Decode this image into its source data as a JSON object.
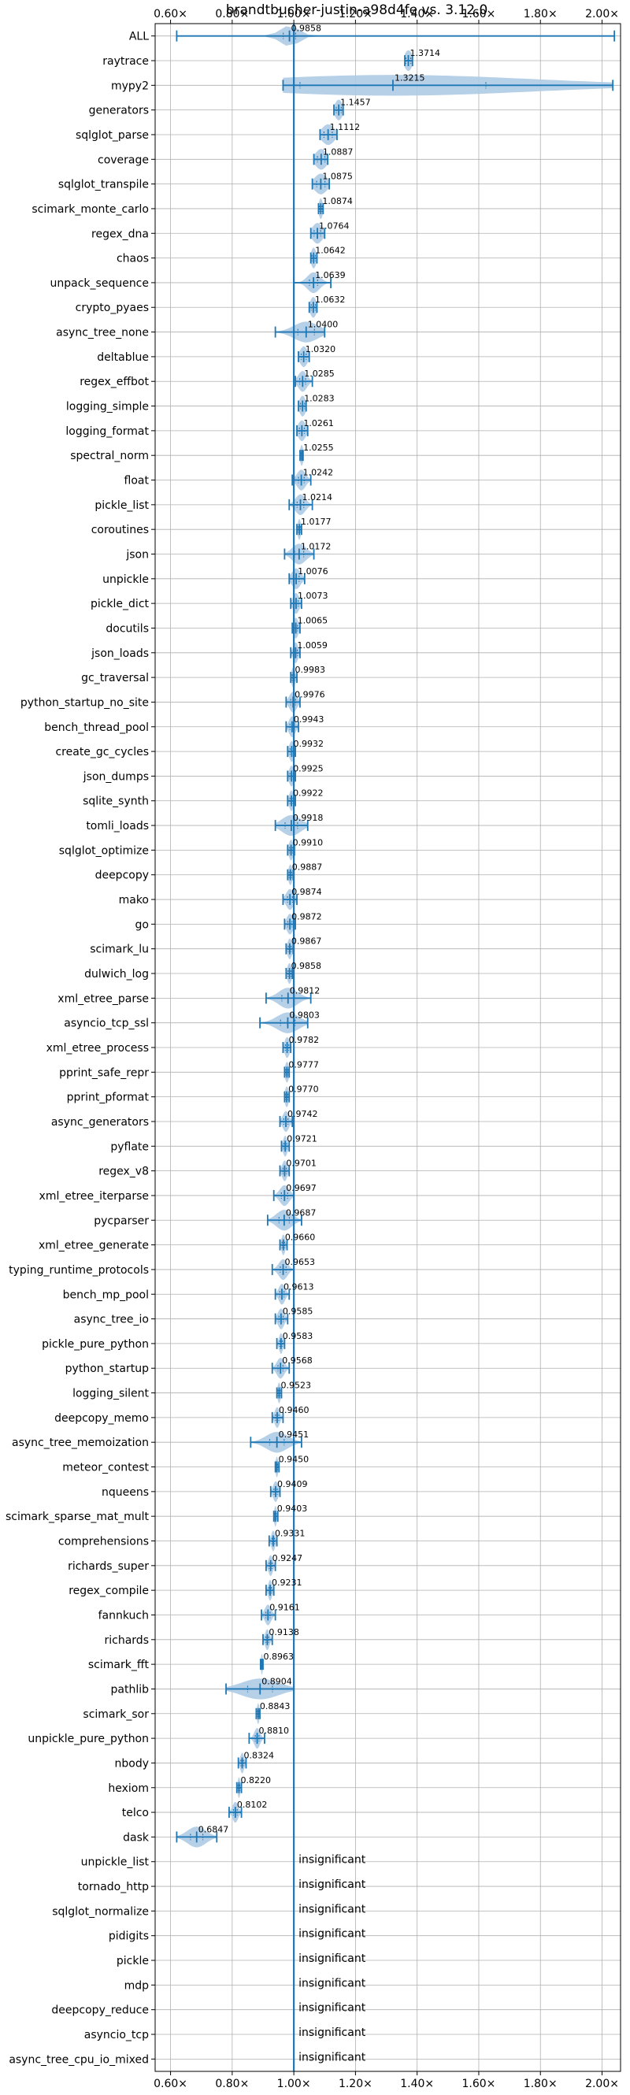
{
  "chart_data": {
    "type": "violin",
    "title": "brandtbucher-justin-a98d4fe vs. 3.12.0",
    "xlabel": "",
    "ylabel": "",
    "xlim": [
      0.55,
      2.06
    ],
    "x_ticks": [
      0.6,
      0.8,
      1.0,
      1.2,
      1.4,
      1.6,
      1.8,
      2.0
    ],
    "x_tick_labels": [
      "0.60×",
      "0.80×",
      "1.00×",
      "1.20×",
      "1.40×",
      "1.60×",
      "1.80×",
      "2.00×"
    ],
    "grid": true,
    "reference_line": 1.0,
    "insignificant_text": "insignificant",
    "colors": {
      "accent": "#1f77b4",
      "violin": "#aecbe5",
      "grid": "#b0b0b0"
    },
    "benchmarks": [
      {
        "name": "ALL",
        "value": 0.9858,
        "label": "0.9858",
        "min": 0.62,
        "max": 2.04,
        "spread": 0.03
      },
      {
        "name": "raytrace",
        "value": 1.3714,
        "label": "1.3714",
        "min": 1.36,
        "max": 1.385,
        "spread": 0.012
      },
      {
        "name": "mypy2",
        "value": 1.3215,
        "label": "1.3215",
        "min": 0.965,
        "max": 2.035,
        "spread": 0.45
      },
      {
        "name": "generators",
        "value": 1.1457,
        "label": "1.1457",
        "min": 1.13,
        "max": 1.16,
        "spread": 0.012
      },
      {
        "name": "sqlglot_parse",
        "value": 1.1112,
        "label": "1.1112",
        "min": 1.085,
        "max": 1.14,
        "spread": 0.02
      },
      {
        "name": "coverage",
        "value": 1.0887,
        "label": "1.0887",
        "min": 1.065,
        "max": 1.11,
        "spread": 0.018
      },
      {
        "name": "sqlglot_transpile",
        "value": 1.0875,
        "label": "1.0875",
        "min": 1.06,
        "max": 1.115,
        "spread": 0.02
      },
      {
        "name": "scimark_monte_carlo",
        "value": 1.0874,
        "label": "1.0874",
        "min": 1.08,
        "max": 1.095,
        "spread": 0.006
      },
      {
        "name": "regex_dna",
        "value": 1.0764,
        "label": "1.0764",
        "min": 1.055,
        "max": 1.1,
        "spread": 0.016
      },
      {
        "name": "chaos",
        "value": 1.0642,
        "label": "1.0642",
        "min": 1.055,
        "max": 1.075,
        "spread": 0.008
      },
      {
        "name": "unpack_sequence",
        "value": 1.0639,
        "label": "1.0639",
        "min": 1.0,
        "max": 1.12,
        "spread": 0.02
      },
      {
        "name": "crypto_pyaes",
        "value": 1.0632,
        "label": "1.0632",
        "min": 1.05,
        "max": 1.075,
        "spread": 0.01
      },
      {
        "name": "async_tree_none",
        "value": 1.04,
        "label": "1.0400",
        "min": 0.94,
        "max": 1.1,
        "spread": 0.04
      },
      {
        "name": "deltablue",
        "value": 1.032,
        "label": "1.0320",
        "min": 1.015,
        "max": 1.05,
        "spread": 0.012
      },
      {
        "name": "regex_effbot",
        "value": 1.0285,
        "label": "1.0285",
        "min": 1.005,
        "max": 1.06,
        "spread": 0.014
      },
      {
        "name": "logging_simple",
        "value": 1.0283,
        "label": "1.0283",
        "min": 1.015,
        "max": 1.04,
        "spread": 0.01
      },
      {
        "name": "logging_format",
        "value": 1.0261,
        "label": "1.0261",
        "min": 1.01,
        "max": 1.045,
        "spread": 0.012
      },
      {
        "name": "spectral_norm",
        "value": 1.0255,
        "label": "1.0255",
        "min": 1.02,
        "max": 1.03,
        "spread": 0.005
      },
      {
        "name": "float",
        "value": 1.0242,
        "label": "1.0242",
        "min": 0.995,
        "max": 1.055,
        "spread": 0.014
      },
      {
        "name": "pickle_list",
        "value": 1.0214,
        "label": "1.0214",
        "min": 0.985,
        "max": 1.06,
        "spread": 0.016
      },
      {
        "name": "coroutines",
        "value": 1.0177,
        "label": "1.0177",
        "min": 1.01,
        "max": 1.025,
        "spread": 0.005
      },
      {
        "name": "json",
        "value": 1.0172,
        "label": "1.0172",
        "min": 0.97,
        "max": 1.065,
        "spread": 0.022
      },
      {
        "name": "unpickle",
        "value": 1.0076,
        "label": "1.0076",
        "min": 0.985,
        "max": 1.035,
        "spread": 0.014
      },
      {
        "name": "pickle_dict",
        "value": 1.0073,
        "label": "1.0073",
        "min": 0.99,
        "max": 1.025,
        "spread": 0.01
      },
      {
        "name": "docutils",
        "value": 1.0065,
        "label": "1.0065",
        "min": 0.995,
        "max": 1.02,
        "spread": 0.008
      },
      {
        "name": "json_loads",
        "value": 1.0059,
        "label": "1.0059",
        "min": 0.99,
        "max": 1.02,
        "spread": 0.008
      },
      {
        "name": "gc_traversal",
        "value": 0.9983,
        "label": "0.9983",
        "min": 0.99,
        "max": 1.01,
        "spread": 0.006
      },
      {
        "name": "python_startup_no_site",
        "value": 0.9976,
        "label": "0.9976",
        "min": 0.975,
        "max": 1.02,
        "spread": 0.012
      },
      {
        "name": "bench_thread_pool",
        "value": 0.9943,
        "label": "0.9943",
        "min": 0.975,
        "max": 1.015,
        "spread": 0.01
      },
      {
        "name": "create_gc_cycles",
        "value": 0.9932,
        "label": "0.9932",
        "min": 0.98,
        "max": 1.005,
        "spread": 0.008
      },
      {
        "name": "json_dumps",
        "value": 0.9925,
        "label": "0.9925",
        "min": 0.98,
        "max": 1.005,
        "spread": 0.008
      },
      {
        "name": "sqlite_synth",
        "value": 0.9922,
        "label": "0.9922",
        "min": 0.98,
        "max": 1.005,
        "spread": 0.007
      },
      {
        "name": "tomli_loads",
        "value": 0.9918,
        "label": "0.9918",
        "min": 0.94,
        "max": 1.045,
        "spread": 0.03
      },
      {
        "name": "sqlglot_optimize",
        "value": 0.991,
        "label": "0.9910",
        "min": 0.98,
        "max": 1.002,
        "spread": 0.007
      },
      {
        "name": "deepcopy",
        "value": 0.9887,
        "label": "0.9887",
        "min": 0.98,
        "max": 0.998,
        "spread": 0.006
      },
      {
        "name": "mako",
        "value": 0.9874,
        "label": "0.9874",
        "min": 0.965,
        "max": 1.01,
        "spread": 0.012
      },
      {
        "name": "go",
        "value": 0.9872,
        "label": "0.9872",
        "min": 0.97,
        "max": 1.005,
        "spread": 0.01
      },
      {
        "name": "scimark_lu",
        "value": 0.9867,
        "label": "0.9867",
        "min": 0.975,
        "max": 0.998,
        "spread": 0.007
      },
      {
        "name": "dulwich_log",
        "value": 0.9858,
        "label": "0.9858",
        "min": 0.975,
        "max": 0.995,
        "spread": 0.007
      },
      {
        "name": "xml_etree_parse",
        "value": 0.9812,
        "label": "0.9812",
        "min": 0.91,
        "max": 1.055,
        "spread": 0.03
      },
      {
        "name": "asyncio_tcp_ssl",
        "value": 0.9803,
        "label": "0.9803",
        "min": 0.89,
        "max": 1.045,
        "spread": 0.035
      },
      {
        "name": "xml_etree_process",
        "value": 0.9782,
        "label": "0.9782",
        "min": 0.965,
        "max": 0.99,
        "spread": 0.008
      },
      {
        "name": "pprint_safe_repr",
        "value": 0.9777,
        "label": "0.9777",
        "min": 0.97,
        "max": 0.985,
        "spread": 0.006
      },
      {
        "name": "pprint_pformat",
        "value": 0.977,
        "label": "0.9770",
        "min": 0.97,
        "max": 0.985,
        "spread": 0.006
      },
      {
        "name": "async_generators",
        "value": 0.9742,
        "label": "0.9742",
        "min": 0.955,
        "max": 0.995,
        "spread": 0.01
      },
      {
        "name": "pyflate",
        "value": 0.9721,
        "label": "0.9721",
        "min": 0.96,
        "max": 0.985,
        "spread": 0.007
      },
      {
        "name": "regex_v8",
        "value": 0.9701,
        "label": "0.9701",
        "min": 0.955,
        "max": 0.985,
        "spread": 0.008
      },
      {
        "name": "xml_etree_iterparse",
        "value": 0.9697,
        "label": "0.9697",
        "min": 0.935,
        "max": 1.0,
        "spread": 0.015
      },
      {
        "name": "pycparser",
        "value": 0.9687,
        "label": "0.9687",
        "min": 0.915,
        "max": 1.025,
        "spread": 0.025
      },
      {
        "name": "xml_etree_generate",
        "value": 0.966,
        "label": "0.9660",
        "min": 0.955,
        "max": 0.978,
        "spread": 0.006
      },
      {
        "name": "typing_runtime_protocols",
        "value": 0.9653,
        "label": "0.9653",
        "min": 0.93,
        "max": 1.0,
        "spread": 0.014
      },
      {
        "name": "bench_mp_pool",
        "value": 0.9613,
        "label": "0.9613",
        "min": 0.94,
        "max": 0.985,
        "spread": 0.01
      },
      {
        "name": "async_tree_io",
        "value": 0.9585,
        "label": "0.9585",
        "min": 0.94,
        "max": 0.98,
        "spread": 0.01
      },
      {
        "name": "pickle_pure_python",
        "value": 0.9583,
        "label": "0.9583",
        "min": 0.945,
        "max": 0.97,
        "spread": 0.006
      },
      {
        "name": "python_startup",
        "value": 0.9568,
        "label": "0.9568",
        "min": 0.93,
        "max": 0.985,
        "spread": 0.012
      },
      {
        "name": "logging_silent",
        "value": 0.9523,
        "label": "0.9523",
        "min": 0.945,
        "max": 0.96,
        "spread": 0.005
      },
      {
        "name": "deepcopy_memo",
        "value": 0.946,
        "label": "0.9460",
        "min": 0.93,
        "max": 0.965,
        "spread": 0.008
      },
      {
        "name": "async_tree_memoization",
        "value": 0.9451,
        "label": "0.9451",
        "min": 0.86,
        "max": 1.025,
        "spread": 0.035
      },
      {
        "name": "meteor_contest",
        "value": 0.945,
        "label": "0.9450",
        "min": 0.94,
        "max": 0.952,
        "spread": 0.004
      },
      {
        "name": "nqueens",
        "value": 0.9409,
        "label": "0.9409",
        "min": 0.925,
        "max": 0.955,
        "spread": 0.008
      },
      {
        "name": "scimark_sparse_mat_mult",
        "value": 0.9403,
        "label": "0.9403",
        "min": 0.935,
        "max": 0.948,
        "spread": 0.004
      },
      {
        "name": "comprehensions",
        "value": 0.9331,
        "label": "0.9331",
        "min": 0.92,
        "max": 0.945,
        "spread": 0.006
      },
      {
        "name": "richards_super",
        "value": 0.9247,
        "label": "0.9247",
        "min": 0.91,
        "max": 0.94,
        "spread": 0.007
      },
      {
        "name": "regex_compile",
        "value": 0.9231,
        "label": "0.9231",
        "min": 0.91,
        "max": 0.935,
        "spread": 0.006
      },
      {
        "name": "fannkuch",
        "value": 0.9161,
        "label": "0.9161",
        "min": 0.895,
        "max": 0.94,
        "spread": 0.01
      },
      {
        "name": "richards",
        "value": 0.9138,
        "label": "0.9138",
        "min": 0.9,
        "max": 0.93,
        "spread": 0.007
      },
      {
        "name": "scimark_fft",
        "value": 0.8963,
        "label": "0.8963",
        "min": 0.892,
        "max": 0.9,
        "spread": 0.003
      },
      {
        "name": "pathlib",
        "value": 0.8904,
        "label": "0.8904",
        "min": 0.78,
        "max": 1.0,
        "spread": 0.06
      },
      {
        "name": "scimark_sor",
        "value": 0.8843,
        "label": "0.8843",
        "min": 0.878,
        "max": 0.89,
        "spread": 0.004
      },
      {
        "name": "unpickle_pure_python",
        "value": 0.881,
        "label": "0.8810",
        "min": 0.855,
        "max": 0.905,
        "spread": 0.009
      },
      {
        "name": "nbody",
        "value": 0.8324,
        "label": "0.8324",
        "min": 0.82,
        "max": 0.845,
        "spread": 0.006
      },
      {
        "name": "hexiom",
        "value": 0.822,
        "label": "0.8220",
        "min": 0.815,
        "max": 0.83,
        "spread": 0.004
      },
      {
        "name": "telco",
        "value": 0.8102,
        "label": "0.8102",
        "min": 0.79,
        "max": 0.83,
        "spread": 0.009
      },
      {
        "name": "dask",
        "value": 0.6847,
        "label": "0.6847",
        "min": 0.62,
        "max": 0.75,
        "spread": 0.03
      },
      {
        "name": "unpickle_list",
        "insignificant": true
      },
      {
        "name": "tornado_http",
        "insignificant": true
      },
      {
        "name": "sqlglot_normalize",
        "insignificant": true
      },
      {
        "name": "pidigits",
        "insignificant": true
      },
      {
        "name": "pickle",
        "insignificant": true
      },
      {
        "name": "mdp",
        "insignificant": true
      },
      {
        "name": "deepcopy_reduce",
        "insignificant": true
      },
      {
        "name": "asyncio_tcp",
        "insignificant": true
      },
      {
        "name": "async_tree_cpu_io_mixed",
        "insignificant": true
      }
    ]
  }
}
